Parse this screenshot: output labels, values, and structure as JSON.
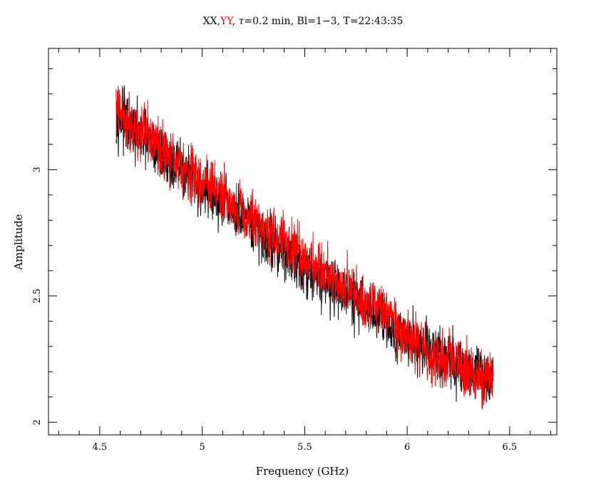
{
  "chart_data": {
    "type": "line",
    "title": {
      "parts": [
        {
          "text": "XX",
          "color": "#000000"
        },
        {
          "text": ",",
          "color": "#000000"
        },
        {
          "text": "YY",
          "color": "#ff0000"
        },
        {
          "text": ", ",
          "color": "#000000"
        },
        {
          "text": "τ",
          "color": "#000000",
          "italic": true
        },
        {
          "text": "=0.2 min, Bl=1−3, T=22:43:35",
          "color": "#000000"
        }
      ]
    },
    "xlabel": "Frequency (GHz)",
    "ylabel": "Amplitude",
    "xlim": [
      4.25,
      6.73
    ],
    "ylim": [
      1.95,
      3.48
    ],
    "x_ticks": [
      {
        "value": 4.5,
        "label": "4.5"
      },
      {
        "value": 5.0,
        "label": "5"
      },
      {
        "value": 5.5,
        "label": "5.5"
      },
      {
        "value": 6.0,
        "label": "6"
      },
      {
        "value": 6.5,
        "label": "6.5"
      }
    ],
    "y_ticks": [
      {
        "value": 2.0,
        "label": "2"
      },
      {
        "value": 2.5,
        "label": "2.5"
      },
      {
        "value": 3.0,
        "label": "3"
      }
    ],
    "grid": false,
    "series": [
      {
        "name": "XX",
        "color": "#000000",
        "x": [
          4.58,
          4.63,
          4.68,
          4.73,
          4.78,
          4.83,
          4.88,
          4.93,
          4.98,
          5.03,
          5.08,
          5.13,
          5.18,
          5.23,
          5.28,
          5.33,
          5.38,
          5.43,
          5.48,
          5.53,
          5.58,
          5.63,
          5.68,
          5.73,
          5.78,
          5.83,
          5.88,
          5.92,
          5.97,
          6.02,
          6.07,
          6.12,
          6.17,
          6.22,
          6.27,
          6.32,
          6.37,
          6.42
        ],
        "y": [
          3.22,
          3.18,
          3.14,
          3.11,
          3.07,
          3.04,
          3.01,
          2.98,
          2.94,
          2.91,
          2.88,
          2.85,
          2.81,
          2.78,
          2.75,
          2.72,
          2.69,
          2.66,
          2.63,
          2.6,
          2.57,
          2.55,
          2.52,
          2.49,
          2.46,
          2.44,
          2.41,
          2.38,
          2.35,
          2.33,
          2.3,
          2.28,
          2.26,
          2.24,
          2.22,
          2.2,
          2.19,
          2.17
        ]
      },
      {
        "name": "YY",
        "color": "#ff0000",
        "x": [
          4.58,
          4.63,
          4.68,
          4.73,
          4.78,
          4.83,
          4.88,
          4.93,
          4.98,
          5.03,
          5.08,
          5.13,
          5.18,
          5.23,
          5.28,
          5.33,
          5.38,
          5.43,
          5.48,
          5.53,
          5.58,
          5.63,
          5.68,
          5.73,
          5.78,
          5.83,
          5.88,
          5.92,
          5.97,
          6.02,
          6.07,
          6.12,
          6.17,
          6.22,
          6.27,
          6.32,
          6.37,
          6.42
        ],
        "y": [
          3.24,
          3.2,
          3.16,
          3.13,
          3.1,
          3.07,
          3.04,
          3.0,
          2.97,
          2.94,
          2.91,
          2.88,
          2.85,
          2.81,
          2.78,
          2.75,
          2.72,
          2.69,
          2.66,
          2.63,
          2.6,
          2.58,
          2.55,
          2.52,
          2.49,
          2.46,
          2.44,
          2.41,
          2.34,
          2.32,
          2.3,
          2.27,
          2.25,
          2.23,
          2.21,
          2.2,
          2.18,
          2.17
        ]
      }
    ]
  }
}
